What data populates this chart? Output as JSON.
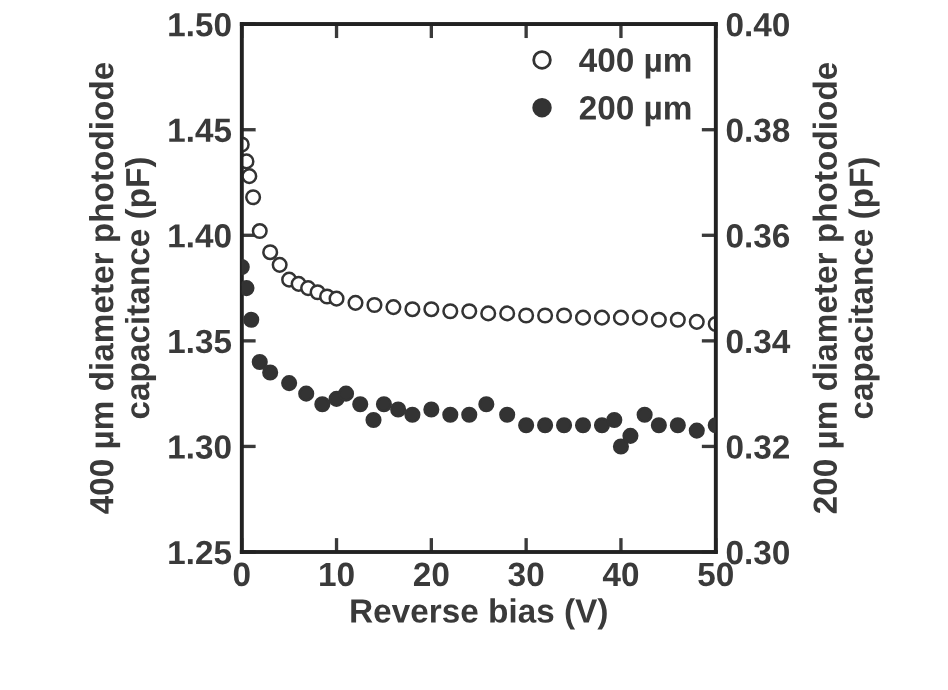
{
  "chart_data": {
    "type": "scatter",
    "xlabel": "Reverse bias (V)",
    "ylabel": "400 µm diameter photodiode\ncapacitance (pF)",
    "y2label": "200 µm diameter photodiode\ncapacitance (pF)",
    "xlim": [
      0,
      50
    ],
    "xticks": [
      0,
      10,
      20,
      30,
      40,
      50
    ],
    "ylim": [
      1.25,
      1.5
    ],
    "yticks": [
      {
        "value": 1.25,
        "label": "1.25"
      },
      {
        "value": 1.3,
        "label": "1.30"
      },
      {
        "value": 1.35,
        "label": "1.35"
      },
      {
        "value": 1.4,
        "label": "1.40"
      },
      {
        "value": 1.45,
        "label": "1.45"
      },
      {
        "value": 1.5,
        "label": "1.50"
      }
    ],
    "y2lim": [
      0.3,
      0.4
    ],
    "y2ticks": [
      {
        "value": 0.3,
        "label": "0.30"
      },
      {
        "value": 0.32,
        "label": "0.32"
      },
      {
        "value": 0.34,
        "label": "0.34"
      },
      {
        "value": 0.36,
        "label": "0.36"
      },
      {
        "value": 0.38,
        "label": "0.38"
      },
      {
        "value": 0.4,
        "label": "0.40"
      }
    ],
    "legend": "top right",
    "grid": false,
    "marker": "circle",
    "series": [
      {
        "name": "400 µm",
        "color": "#ffffff",
        "x": [
          0,
          0.5,
          0.8,
          1.2,
          1.9,
          3,
          4,
          5,
          6,
          7,
          8,
          9,
          10,
          12,
          14,
          16,
          18,
          20,
          22,
          24,
          26,
          28,
          30,
          32,
          34,
          36,
          38,
          40,
          42,
          44,
          46,
          48,
          50
        ],
        "values": [
          1.443,
          1.435,
          1.428,
          1.418,
          1.402,
          1.392,
          1.386,
          1.379,
          1.377,
          1.375,
          1.373,
          1.371,
          1.37,
          1.368,
          1.367,
          1.366,
          1.365,
          1.365,
          1.364,
          1.364,
          1.363,
          1.363,
          1.362,
          1.362,
          1.362,
          1.361,
          1.361,
          1.361,
          1.361,
          1.36,
          1.36,
          1.359,
          1.358
        ]
      },
      {
        "name": "200 µm",
        "color": "#333333",
        "axis": "y2",
        "x": [
          0,
          0.5,
          1,
          1.9,
          3,
          5,
          6.8,
          8.5,
          10,
          11,
          12.5,
          13.9,
          15,
          16.5,
          18,
          20,
          22,
          24,
          25.8,
          28,
          30,
          32,
          34,
          36,
          38,
          39.3,
          40,
          41,
          42.5,
          44,
          46,
          48,
          50
        ],
        "values": [
          0.354,
          0.35,
          0.344,
          0.336,
          0.334,
          0.332,
          0.33,
          0.328,
          0.329,
          0.33,
          0.328,
          0.325,
          0.328,
          0.327,
          0.326,
          0.327,
          0.326,
          0.326,
          0.328,
          0.326,
          0.324,
          0.324,
          0.324,
          0.324,
          0.324,
          0.325,
          0.32,
          0.322,
          0.326,
          0.324,
          0.324,
          0.323,
          0.324
        ]
      }
    ]
  }
}
